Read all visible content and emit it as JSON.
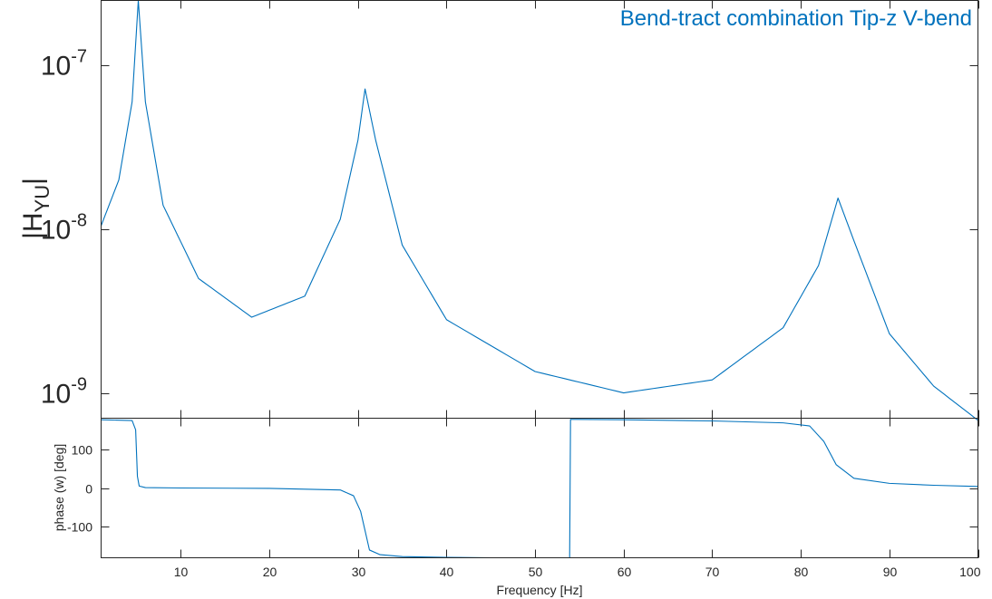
{
  "colors": {
    "series": "#0072BD",
    "axis": "#262626",
    "title": "#0072BD"
  },
  "chart_data": [
    {
      "type": "line",
      "scale": "log",
      "title": "Bend-tract combination Tip-z V-bend",
      "xlabel": "",
      "ylabel_main": "|H",
      "ylabel_sub": "YU",
      "ylabel_end": "|",
      "xlim": [
        1,
        100
      ],
      "ylim": [
        7e-10,
        2.5e-07
      ],
      "yticks": [
        {
          "value": 1e-07,
          "base": "10",
          "exp": "-7"
        },
        {
          "value": 1e-08,
          "base": "10",
          "exp": "-8"
        },
        {
          "value": 1e-09,
          "base": "10",
          "exp": "-9"
        }
      ],
      "x": [
        1,
        3,
        4.5,
        5.2,
        6,
        8,
        12,
        18,
        24,
        28,
        30,
        30.8,
        32,
        35,
        40,
        50,
        60,
        70,
        78,
        82,
        84.2,
        86,
        90,
        95,
        100
      ],
      "y": [
        1.05e-08,
        2e-08,
        6e-08,
        2.5e-07,
        6e-08,
        1.4e-08,
        5e-09,
        2.9e-09,
        3.9e-09,
        1.15e-08,
        3.5e-08,
        7.2e-08,
        3.5e-08,
        8e-09,
        2.8e-09,
        1.35e-09,
        1e-09,
        1.2e-09,
        2.5e-09,
        6e-09,
        1.55e-08,
        8.5e-09,
        2.3e-09,
        1.1e-09,
        6.8e-10
      ]
    },
    {
      "type": "line",
      "xlabel": "Frequency [Hz]",
      "ylabel": "phase (w) [deg]",
      "xlim": [
        1,
        100
      ],
      "ylim": [
        -180,
        180
      ],
      "yticks": [
        100,
        0,
        -100
      ],
      "xticks": [
        10,
        20,
        30,
        40,
        50,
        60,
        70,
        80,
        90,
        100
      ],
      "x": [
        1,
        4.5,
        4.9,
        5.1,
        5.3,
        6,
        10,
        20,
        28,
        29.5,
        30.3,
        30.8,
        31.3,
        32.5,
        35,
        40,
        45,
        50,
        53.9,
        54.0,
        60,
        70,
        78,
        81,
        82.6,
        84,
        86,
        90,
        95,
        100
      ],
      "y": [
        176,
        174,
        150,
        30,
        5,
        1,
        0,
        -1,
        -5,
        -20,
        -60,
        -110,
        -160,
        -172,
        -177,
        -179,
        -180,
        -180,
        -180,
        177,
        176,
        173,
        168,
        160,
        120,
        60,
        25,
        12,
        7,
        4
      ]
    }
  ]
}
